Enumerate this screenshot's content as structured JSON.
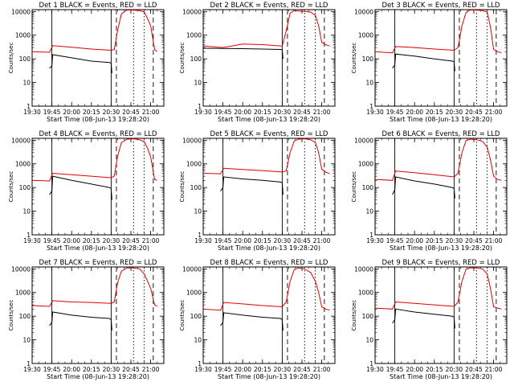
{
  "figure": {
    "xlabel": "Start Time (08-Jun-13 19:28:20)",
    "ylabel": "Counts/sec",
    "x_tick_labels": [
      "19:30",
      "19:45",
      "20:00",
      "20:15",
      "20:30",
      "20:45",
      "21:00"
    ],
    "y_tick_labels": [
      "1",
      "10",
      "100",
      "1000",
      "10000"
    ],
    "colors": {
      "events": "#000000",
      "lld": "#dd0000",
      "axes": "#000000"
    }
  },
  "chart_data": [
    {
      "type": "line",
      "title": "Det 1 BLACK = Events, RED = LLD",
      "xlim": [
        19.5,
        21.1667
      ],
      "ylim": [
        1,
        12000
      ],
      "yscale": "log",
      "vlines": {
        "solid": [
          19.75,
          20.5
        ],
        "dashed": [
          20.5667,
          21.0333
        ],
        "dotted": [
          20.7833,
          20.9167
        ]
      },
      "series": [
        {
          "name": "Events",
          "x": [
            19.72,
            19.75,
            19.76,
            20.0,
            20.25,
            20.48,
            20.5,
            20.51
          ],
          "y": [
            40,
            50,
            150,
            110,
            80,
            70,
            65,
            25
          ]
        },
        {
          "name": "LLD",
          "x": [
            19.5,
            19.72,
            19.76,
            20.0,
            20.25,
            20.5,
            20.54,
            20.58,
            20.63,
            20.7,
            20.78,
            20.86,
            20.92,
            20.96,
            21.0,
            21.05,
            21.08
          ],
          "y": [
            200,
            190,
            360,
            310,
            260,
            230,
            250,
            1500,
            8000,
            11500,
            11500,
            11000,
            9500,
            5000,
            2500,
            250,
            200
          ]
        }
      ]
    },
    {
      "type": "line",
      "title": "Det 2 BLACK = Events, RED = LLD",
      "xlim": [
        19.5,
        21.1667
      ],
      "ylim": [
        1,
        12000
      ],
      "yscale": "log",
      "vlines": {
        "solid": [
          20.5
        ],
        "dashed": [
          20.5667,
          21.0333
        ],
        "dotted": [
          20.7833,
          20.9167
        ]
      },
      "series": [
        {
          "name": "Events",
          "x": [
            19.5,
            20.0,
            20.25,
            20.48,
            20.5,
            20.51
          ],
          "y": [
            280,
            270,
            260,
            250,
            240,
            100
          ]
        },
        {
          "name": "LLD",
          "x": [
            19.5,
            19.75,
            20.0,
            20.25,
            20.5,
            20.55,
            20.6,
            20.65,
            20.7,
            20.78,
            20.86,
            20.92,
            20.96,
            21.0,
            21.05,
            21.1
          ],
          "y": [
            350,
            300,
            420,
            400,
            350,
            1500,
            8500,
            11000,
            10500,
            10000,
            9500,
            7000,
            2500,
            500,
            400,
            350
          ]
        }
      ]
    },
    {
      "type": "line",
      "title": "Det 3 BLACK = Events, RED = LLD",
      "xlim": [
        19.5,
        21.1667
      ],
      "ylim": [
        1,
        12000
      ],
      "yscale": "log",
      "vlines": {
        "solid": [
          19.75,
          20.5
        ],
        "dashed": [
          20.5667,
          21.0333
        ],
        "dotted": [
          20.7833,
          20.9167
        ]
      },
      "series": [
        {
          "name": "Events",
          "x": [
            19.72,
            19.75,
            19.76,
            20.0,
            20.25,
            20.48,
            20.5,
            20.51
          ],
          "y": [
            40,
            55,
            160,
            130,
            100,
            80,
            75,
            30
          ]
        },
        {
          "name": "LLD",
          "x": [
            19.5,
            19.72,
            19.76,
            20.0,
            20.25,
            20.5,
            20.55,
            20.6,
            20.65,
            20.7,
            20.78,
            20.86,
            20.92,
            20.96,
            21.0,
            21.05,
            21.1
          ],
          "y": [
            200,
            180,
            330,
            300,
            260,
            230,
            300,
            2500,
            9000,
            11500,
            11500,
            11000,
            9500,
            2200,
            250,
            200,
            180
          ]
        }
      ]
    },
    {
      "type": "line",
      "title": "Det 4 BLACK = Events, RED = LLD",
      "xlim": [
        19.5,
        21.1667
      ],
      "ylim": [
        1,
        12000
      ],
      "yscale": "log",
      "vlines": {
        "solid": [
          19.75,
          20.5
        ],
        "dashed": [
          20.5667,
          21.0333
        ],
        "dotted": [
          20.7833,
          20.9167
        ]
      },
      "series": [
        {
          "name": "Events",
          "x": [
            19.72,
            19.75,
            19.76,
            20.0,
            20.25,
            20.48,
            20.5,
            20.51
          ],
          "y": [
            50,
            70,
            300,
            200,
            140,
            100,
            90,
            30
          ]
        },
        {
          "name": "LLD",
          "x": [
            19.5,
            19.72,
            19.76,
            20.0,
            20.25,
            20.5,
            20.54,
            20.58,
            20.63,
            20.7,
            20.78,
            20.86,
            20.92,
            20.96,
            21.0,
            21.05,
            21.08
          ],
          "y": [
            200,
            190,
            400,
            350,
            300,
            260,
            300,
            2000,
            8000,
            11000,
            11500,
            10500,
            8500,
            4500,
            2000,
            220,
            200
          ]
        }
      ]
    },
    {
      "type": "line",
      "title": "Det 5 BLACK = Events, RED = LLD",
      "xlim": [
        19.5,
        21.1667
      ],
      "ylim": [
        1,
        12000
      ],
      "yscale": "log",
      "vlines": {
        "solid": [
          19.75,
          20.5
        ],
        "dashed": [
          20.5667,
          21.0333
        ],
        "dotted": [
          20.7833,
          20.9167
        ]
      },
      "series": [
        {
          "name": "Events",
          "x": [
            19.72,
            19.75,
            19.76,
            20.0,
            20.25,
            20.48,
            20.5,
            20.51
          ],
          "y": [
            70,
            100,
            280,
            230,
            200,
            170,
            160,
            50
          ]
        },
        {
          "name": "LLD",
          "x": [
            19.5,
            19.72,
            19.76,
            20.0,
            20.25,
            20.5,
            20.55,
            20.6,
            20.65,
            20.7,
            20.78,
            20.86,
            20.92,
            20.96,
            21.0,
            21.05,
            21.1
          ],
          "y": [
            400,
            380,
            650,
            580,
            520,
            450,
            500,
            3000,
            9000,
            11000,
            11500,
            10500,
            8000,
            3000,
            600,
            450,
            380
          ]
        }
      ]
    },
    {
      "type": "line",
      "title": "Det 6 BLACK = Events, RED = LLD",
      "xlim": [
        19.5,
        21.1667
      ],
      "ylim": [
        1,
        12000
      ],
      "yscale": "log",
      "vlines": {
        "solid": [
          19.75,
          20.5
        ],
        "dashed": [
          20.5667,
          21.0333
        ],
        "dotted": [
          20.7833,
          20.9167
        ]
      },
      "series": [
        {
          "name": "Events",
          "x": [
            19.72,
            19.75,
            19.76,
            20.0,
            20.25,
            20.48,
            20.5,
            20.51
          ],
          "y": [
            50,
            80,
            280,
            190,
            140,
            100,
            90,
            35
          ]
        },
        {
          "name": "LLD",
          "x": [
            19.5,
            19.72,
            19.76,
            20.0,
            20.25,
            20.5,
            20.55,
            20.6,
            20.65,
            20.7,
            20.78,
            20.86,
            20.92,
            20.96,
            21.0,
            21.05,
            21.1
          ],
          "y": [
            220,
            200,
            500,
            420,
            350,
            280,
            400,
            3000,
            9500,
            11000,
            10500,
            9000,
            5000,
            1500,
            300,
            220,
            200
          ]
        }
      ]
    },
    {
      "type": "line",
      "title": "Det 7 BLACK = Events, RED = LLD",
      "xlim": [
        19.5,
        21.1667
      ],
      "ylim": [
        1,
        12000
      ],
      "yscale": "log",
      "vlines": {
        "solid": [
          19.75,
          20.5
        ],
        "dashed": [
          20.5667,
          21.0333
        ],
        "dotted": [
          20.7833,
          20.9167
        ]
      },
      "series": [
        {
          "name": "Events",
          "x": [
            19.72,
            19.75,
            19.76,
            20.0,
            20.25,
            20.48,
            20.5,
            20.51
          ],
          "y": [
            40,
            55,
            150,
            110,
            90,
            80,
            70,
            25
          ]
        },
        {
          "name": "LLD",
          "x": [
            19.5,
            19.72,
            19.76,
            20.0,
            20.25,
            20.5,
            20.54,
            20.58,
            20.63,
            20.7,
            20.78,
            20.86,
            20.92,
            20.96,
            21.0,
            21.05,
            21.08
          ],
          "y": [
            280,
            260,
            450,
            400,
            380,
            350,
            400,
            2500,
            8000,
            11000,
            11000,
            10000,
            6000,
            3000,
            1500,
            300,
            260
          ]
        }
      ]
    },
    {
      "type": "line",
      "title": "Det 8 BLACK = Events, RED = LLD",
      "xlim": [
        19.5,
        21.1667
      ],
      "ylim": [
        1,
        12000
      ],
      "yscale": "log",
      "vlines": {
        "solid": [
          19.75,
          20.5
        ],
        "dashed": [
          20.5667,
          21.0333
        ],
        "dotted": [
          20.7833,
          20.9167
        ]
      },
      "series": [
        {
          "name": "Events",
          "x": [
            19.72,
            19.75,
            19.76,
            20.0,
            20.25,
            20.48,
            20.5,
            20.51
          ],
          "y": [
            40,
            55,
            140,
            110,
            90,
            80,
            70,
            25
          ]
        },
        {
          "name": "LLD",
          "x": [
            19.5,
            19.72,
            19.76,
            20.0,
            20.25,
            20.5,
            20.55,
            20.6,
            20.65,
            20.7,
            20.78,
            20.86,
            20.92,
            20.96,
            21.0,
            21.05,
            21.1
          ],
          "y": [
            200,
            180,
            380,
            330,
            280,
            250,
            400,
            3000,
            9000,
            11000,
            10000,
            7000,
            3000,
            1000,
            250,
            200,
            180
          ]
        }
      ]
    },
    {
      "type": "line",
      "title": "Det 9 BLACK = Events, RED = LLD",
      "xlim": [
        19.5,
        21.1667
      ],
      "ylim": [
        1,
        12000
      ],
      "yscale": "log",
      "vlines": {
        "solid": [
          19.75,
          20.5
        ],
        "dashed": [
          20.5667,
          21.0333
        ],
        "dotted": [
          20.7833,
          20.9167
        ]
      },
      "series": [
        {
          "name": "Events",
          "x": [
            19.72,
            19.75,
            19.76,
            20.0,
            20.25,
            20.48,
            20.5,
            20.51
          ],
          "y": [
            50,
            70,
            200,
            150,
            120,
            100,
            90,
            30
          ]
        },
        {
          "name": "LLD",
          "x": [
            19.5,
            19.72,
            19.76,
            20.0,
            20.25,
            20.5,
            20.55,
            20.6,
            20.65,
            20.7,
            20.78,
            20.86,
            20.92,
            20.96,
            21.0,
            21.05,
            21.1
          ],
          "y": [
            220,
            200,
            400,
            350,
            300,
            260,
            400,
            3000,
            9500,
            11000,
            11000,
            10000,
            6000,
            1500,
            250,
            220,
            200
          ]
        }
      ]
    }
  ]
}
